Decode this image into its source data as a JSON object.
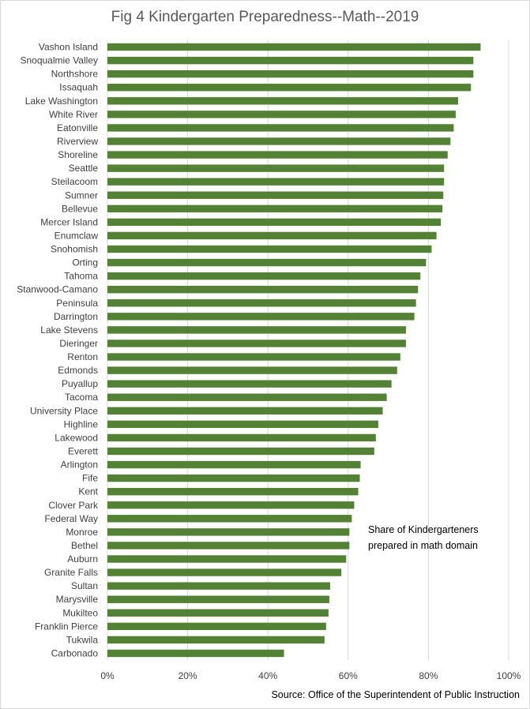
{
  "chart_data": {
    "type": "bar",
    "orientation": "horizontal",
    "title": "Fig 4 Kindergarten Preparedness--Math--2019",
    "annotation": [
      "Share of Kindergarteners",
      "prepared in math domain"
    ],
    "source": "Source: Office of the Superintendent of Public Instruction",
    "xlim": [
      0,
      100
    ],
    "xticks": [
      0,
      20,
      40,
      60,
      80,
      100
    ],
    "xtick_labels": [
      "0%",
      "20%",
      "40%",
      "60%",
      "80%",
      "100%"
    ],
    "grid": true,
    "bar_color": "#538135",
    "categories": [
      "Vashon Island",
      "Snoqualmie Valley",
      "Northshore",
      "Issaquah",
      "Lake Washington",
      "White River",
      "Eatonville",
      "Riverview",
      "Shoreline",
      "Seattle",
      "Steilacoom",
      "Sumner",
      "Bellevue",
      "Mercer Island",
      "Enumclaw",
      "Snohomish",
      "Orting",
      "Tahoma",
      "Stanwood-Camano",
      "Peninsula",
      "Darrington",
      "Lake Stevens",
      "Dieringer",
      "Renton",
      "Edmonds",
      "Puyallup",
      "Tacoma",
      "University Place",
      "Highline",
      "Lakewood",
      "Everett",
      "Arlington",
      "Fife",
      "Kent",
      "Clover Park",
      "Federal Way",
      "Monroe",
      "Bethel",
      "Auburn",
      "Granite Falls",
      "Sultan",
      "Marysville",
      "Mukilteo",
      "Franklin Pierce",
      "Tukwila",
      "Carbonado"
    ],
    "values": [
      93.0,
      91.2,
      91.2,
      90.6,
      87.4,
      86.8,
      86.3,
      85.5,
      84.8,
      83.9,
      83.9,
      83.7,
      83.5,
      83.1,
      82.0,
      80.8,
      79.4,
      78.0,
      77.4,
      76.9,
      76.5,
      74.4,
      74.4,
      73.0,
      72.2,
      70.8,
      69.6,
      68.6,
      67.5,
      66.9,
      66.5,
      63.1,
      62.9,
      62.5,
      61.5,
      60.9,
      60.3,
      60.3,
      59.5,
      58.3,
      55.5,
      55.3,
      55.1,
      54.5,
      54.1,
      44.0
    ]
  }
}
